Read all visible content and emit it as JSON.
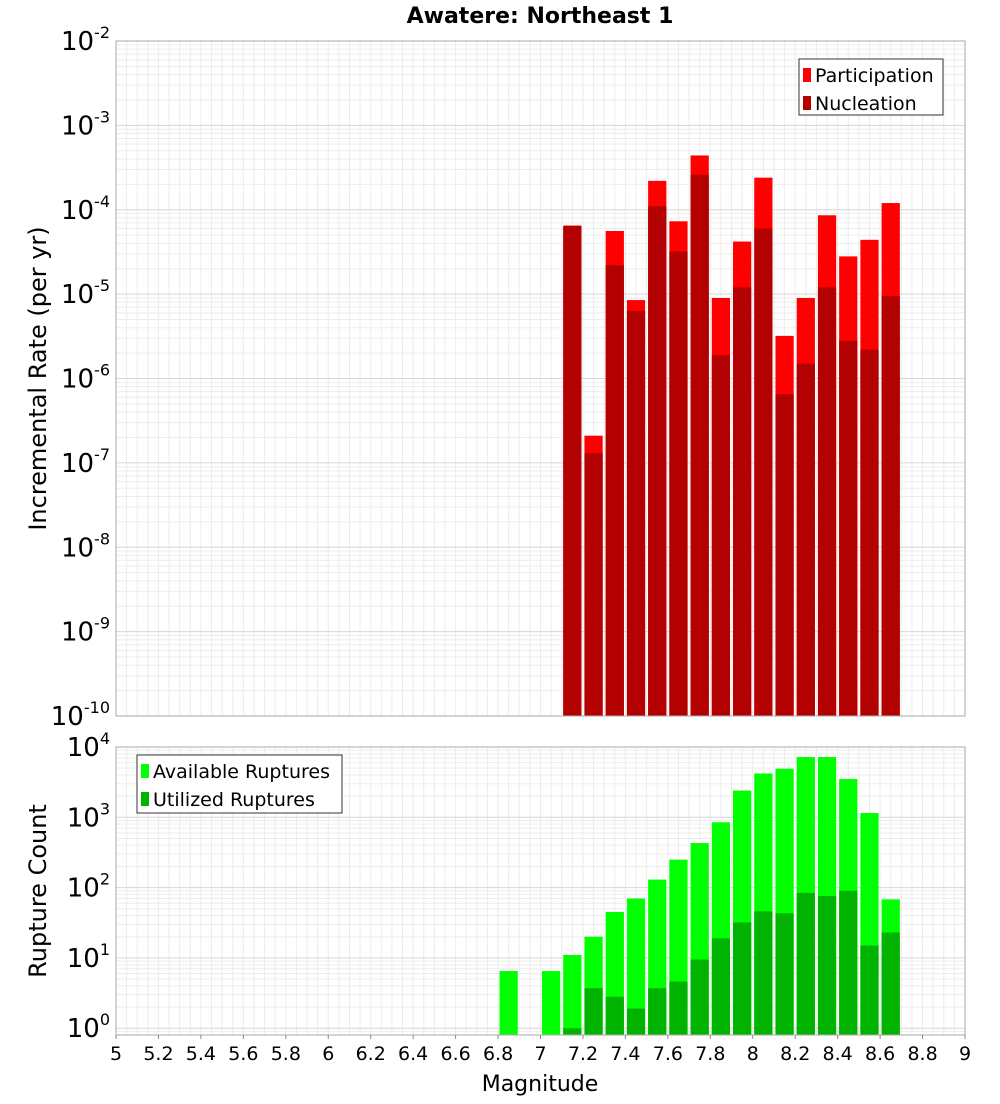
{
  "chart_data": {
    "type": "bar",
    "title": "Awatere: Northeast 1",
    "xlabel": "Magnitude",
    "xlim": [
      5,
      9
    ],
    "x_ticks": [
      "5",
      "5.2",
      "5.4",
      "5.6",
      "5.8",
      "6",
      "6.2",
      "6.4",
      "6.6",
      "6.8",
      "7",
      "7.2",
      "7.4",
      "7.6",
      "7.8",
      "8",
      "8.2",
      "8.4",
      "8.6",
      "8.8",
      "9"
    ],
    "bin_width": 0.1,
    "panels": [
      {
        "ylabel": "Incremental Rate (per yr)",
        "y_scale": "log",
        "ylim": [
          1e-10,
          0.01
        ],
        "y_tick_exponents": [
          -10,
          -9,
          -8,
          -7,
          -6,
          -5,
          -4,
          -3,
          -2
        ],
        "legend": {
          "placement": "top-right"
        },
        "series": [
          {
            "name": "Participation",
            "color": "#ff0000",
            "x": [
              7.15,
              7.25,
              7.35,
              7.45,
              7.55,
              7.65,
              7.75,
              7.85,
              7.95,
              8.05,
              8.15,
              8.25,
              8.35,
              8.45,
              8.55,
              8.65
            ],
            "values": [
              6.5e-05,
              2.1e-07,
              5.6e-05,
              8.5e-06,
              0.00022,
              7.3e-05,
              0.00044,
              9e-06,
              4.2e-05,
              0.00024,
              3.2e-06,
              9e-06,
              8.6e-05,
              2.8e-05,
              4.4e-05,
              0.00012
            ]
          },
          {
            "name": "Nucleation",
            "color": "#b30000",
            "x": [
              7.15,
              7.25,
              7.35,
              7.45,
              7.55,
              7.65,
              7.75,
              7.85,
              7.95,
              8.05,
              8.15,
              8.25,
              8.35,
              8.45,
              8.55,
              8.65
            ],
            "values": [
              6.4e-05,
              1.3e-07,
              2.2e-05,
              6.3e-06,
              0.00011,
              3.2e-05,
              0.00026,
              1.9e-06,
              1.2e-05,
              6e-05,
              6.5e-07,
              1.5e-06,
              1.2e-05,
              2.8e-06,
              2.2e-06,
              9.5e-06
            ]
          }
        ]
      },
      {
        "ylabel": "Rupture Count",
        "y_scale": "log",
        "ylim": [
          0.8,
          10000
        ],
        "y_tick_exponents": [
          0,
          1,
          2,
          3,
          4
        ],
        "legend": {
          "placement": "top-left"
        },
        "series": [
          {
            "name": "Available Ruptures",
            "color": "#00ff00",
            "x": [
              6.85,
              7.05,
              7.15,
              7.25,
              7.35,
              7.45,
              7.55,
              7.65,
              7.75,
              7.85,
              7.95,
              8.05,
              8.15,
              8.25,
              8.35,
              8.45,
              8.55,
              8.65
            ],
            "values": [
              6.5,
              6.5,
              11,
              20,
              45,
              70,
              130,
              250,
              430,
              850,
              2400,
              4200,
              4900,
              7200,
              7200,
              3500,
              1150,
              68
            ]
          },
          {
            "name": "Utilized Ruptures",
            "color": "#00b300",
            "x": [
              6.85,
              7.05,
              7.15,
              7.25,
              7.35,
              7.45,
              7.55,
              7.65,
              7.75,
              7.85,
              7.95,
              8.05,
              8.15,
              8.25,
              8.35,
              8.45,
              8.55,
              8.65
            ],
            "values": [
              0,
              0,
              1,
              3.7,
              2.8,
              1.9,
              3.7,
              4.6,
              9.5,
              19,
              32,
              46,
              43,
              84,
              76,
              90,
              15,
              23
            ]
          }
        ]
      }
    ]
  }
}
